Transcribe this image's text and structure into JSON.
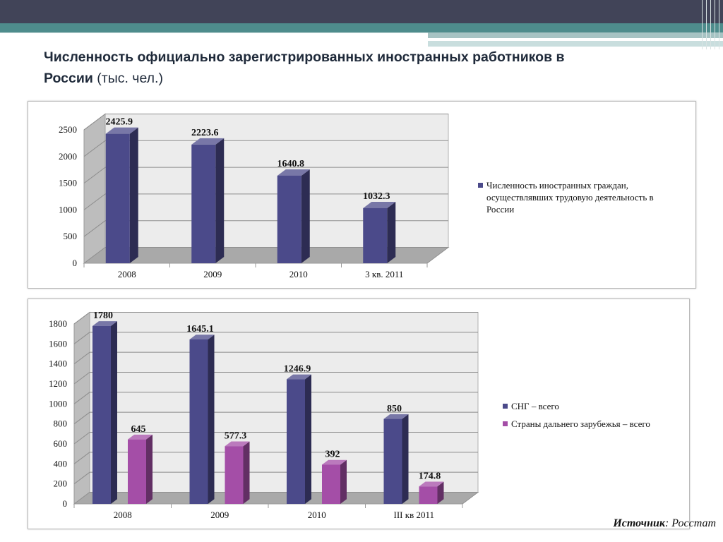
{
  "slide": {
    "title_bold": "Численность официально зарегистрированных иностранных работников в России",
    "title_normal": "(тыс. чел.)",
    "source_label": "Источник",
    "source_value": ": Росстат"
  },
  "colors": {
    "header_dark": "#414458",
    "header_teal": "#4e8c8c",
    "series_blue": "#4b4a8a",
    "series_purple": "#a44ea7"
  },
  "chart_data": [
    {
      "type": "bar",
      "title": "",
      "categories": [
        "2008",
        "2009",
        "2010",
        "3 кв. 2011"
      ],
      "series": [
        {
          "name": "Численность иностранных граждан, осуществлявших трудовую деятельность в России",
          "values": [
            2425.9,
            2223.6,
            1640.8,
            1032.3
          ],
          "labels": [
            "2425.9",
            "2223.6",
            "1640.8",
            "1032.3"
          ],
          "color": "#4b4a8a"
        }
      ],
      "ylim": [
        0,
        2500
      ],
      "yticks": [
        "0",
        "500",
        "1000",
        "1500",
        "2000",
        "2500"
      ],
      "legend_lines": [
        "Численность иностранных граждан,",
        "осуществлявших трудовую деятельность в",
        "России"
      ],
      "grid": true,
      "legend_position": "right"
    },
    {
      "type": "bar",
      "title": "",
      "categories": [
        "2008",
        "2009",
        "2010",
        "III кв 2011"
      ],
      "series": [
        {
          "name": "СНГ – всего",
          "values": [
            1780,
            1645.1,
            1246.9,
            850
          ],
          "labels": [
            "1780",
            "1645.1",
            "1246.9",
            "850"
          ],
          "color": "#4b4a8a"
        },
        {
          "name": "Страны дальнего зарубежья – всего",
          "values": [
            645,
            577.3,
            392,
            174.8
          ],
          "labels": [
            "645",
            "577.3",
            "392",
            "174.8"
          ],
          "color": "#a44ea7"
        }
      ],
      "ylim": [
        0,
        1800
      ],
      "yticks": [
        "0",
        "200",
        "400",
        "600",
        "800",
        "1000",
        "1200",
        "1400",
        "1600",
        "1800"
      ],
      "grid": true,
      "legend_position": "right"
    }
  ]
}
